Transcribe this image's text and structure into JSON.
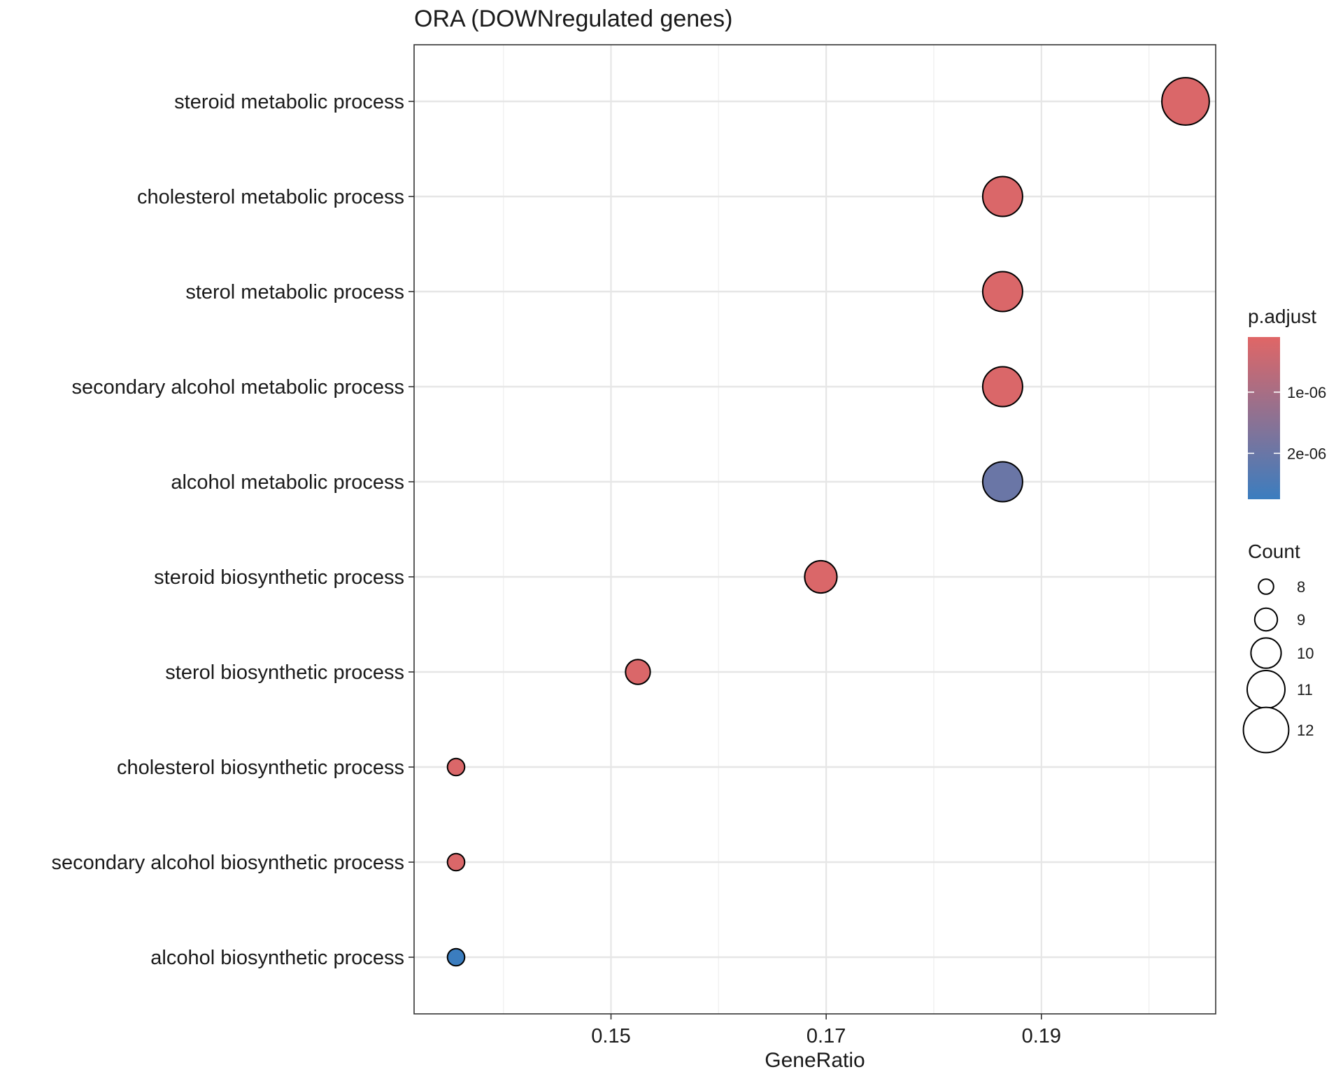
{
  "chart_data": {
    "type": "scatter",
    "title": "ORA (DOWNregulated genes)",
    "xlabel": "GeneRatio",
    "ylabel": "",
    "xlim": [
      0.1317,
      0.2062
    ],
    "x_ticks": [
      0.15,
      0.17,
      0.19
    ],
    "x_tick_labels": [
      "0.15",
      "0.17",
      "0.19"
    ],
    "grid": true,
    "categories": [
      "steroid metabolic process",
      "cholesterol metabolic process",
      "sterol metabolic process",
      "secondary alcohol metabolic process",
      "alcohol metabolic process",
      "steroid biosynthetic process",
      "sterol biosynthetic process",
      "cholesterol biosynthetic process",
      "secondary alcohol biosynthetic process",
      "alcohol biosynthetic process"
    ],
    "points": [
      {
        "term": "steroid metabolic process",
        "gene_ratio": 0.2034,
        "count": 12,
        "p_adjust": 2e-07
      },
      {
        "term": "cholesterol metabolic process",
        "gene_ratio": 0.1864,
        "count": 11,
        "p_adjust": 2e-07
      },
      {
        "term": "sterol metabolic process",
        "gene_ratio": 0.1864,
        "count": 11,
        "p_adjust": 2e-07
      },
      {
        "term": "secondary alcohol metabolic process",
        "gene_ratio": 0.1864,
        "count": 11,
        "p_adjust": 2e-07
      },
      {
        "term": "alcohol metabolic process",
        "gene_ratio": 0.1864,
        "count": 11,
        "p_adjust": 2e-06
      },
      {
        "term": "steroid biosynthetic process",
        "gene_ratio": 0.1695,
        "count": 10,
        "p_adjust": 2e-07
      },
      {
        "term": "sterol biosynthetic process",
        "gene_ratio": 0.1525,
        "count": 9,
        "p_adjust": 2e-07
      },
      {
        "term": "cholesterol biosynthetic process",
        "gene_ratio": 0.1356,
        "count": 8,
        "p_adjust": 2e-07
      },
      {
        "term": "secondary alcohol biosynthetic process",
        "gene_ratio": 0.1356,
        "count": 8,
        "p_adjust": 2e-07
      },
      {
        "term": "alcohol biosynthetic process",
        "gene_ratio": 0.1356,
        "count": 8,
        "p_adjust": 2.8e-06
      }
    ],
    "color_legend": {
      "title": "p.adjust",
      "range": [
        1e-07,
        2.75e-06
      ],
      "ticks": [
        1e-06,
        2e-06
      ],
      "tick_labels": [
        "1e-06",
        "2e-06"
      ],
      "low_color": "#E06666",
      "high_color": "#3B7DBF",
      "placement": "right"
    },
    "size_legend": {
      "title": "Count",
      "values": [
        8,
        9,
        10,
        11,
        12
      ],
      "labels": [
        "8",
        "9",
        "10",
        "11",
        "12"
      ],
      "placement": "right"
    }
  }
}
